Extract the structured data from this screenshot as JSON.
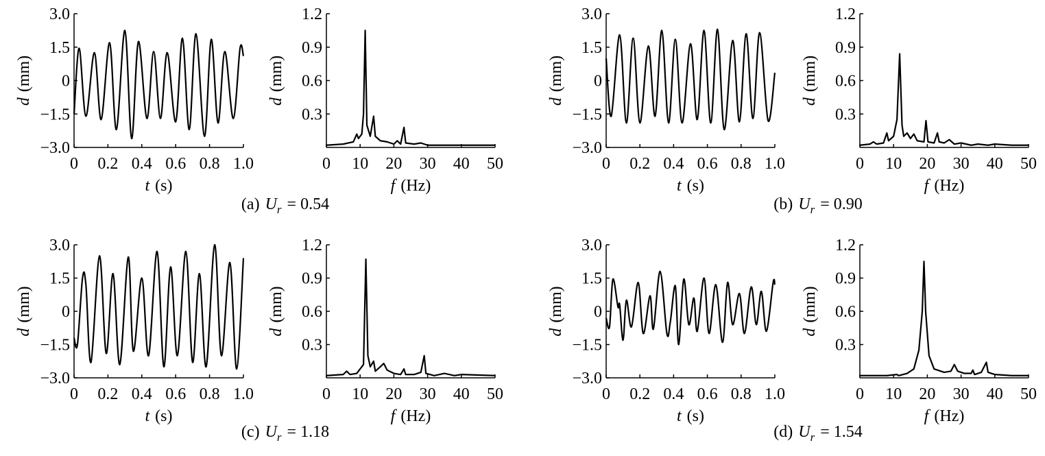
{
  "chart_data": [
    {
      "type": "line",
      "smooth": true,
      "panel": 0,
      "x": [
        0,
        0.03,
        0.07,
        0.12,
        0.16,
        0.21,
        0.25,
        0.3,
        0.34,
        0.38,
        0.43,
        0.47,
        0.51,
        0.55,
        0.6,
        0.64,
        0.68,
        0.72,
        0.77,
        0.81,
        0.85,
        0.89,
        0.94,
        0.98,
        1.0
      ],
      "series": [
        {
          "color": "#000000",
          "values": [
            -1.5,
            1.45,
            -1.6,
            1.25,
            -1.75,
            1.7,
            -2.2,
            2.25,
            -2.6,
            1.75,
            -1.7,
            1.3,
            -1.7,
            1.25,
            -1.85,
            1.9,
            -2.2,
            2.1,
            -2.5,
            1.85,
            -1.9,
            1.3,
            -1.7,
            1.45,
            1.1
          ]
        }
      ],
      "xlim": [
        0,
        1
      ],
      "ylim": [
        -3,
        3
      ],
      "xticks": [
        0,
        0.2,
        0.4,
        0.6,
        0.8,
        {
          "value": 1,
          "label": "1.0"
        }
      ],
      "yticks": [
        {
          "value": -3,
          "label": "−3.0"
        },
        {
          "value": -1.5,
          "label": "−1.5"
        },
        0,
        1.5,
        {
          "value": 3,
          "label": "3.0"
        }
      ],
      "xlabel": {
        "symbol": "t",
        "unit": "(s)"
      },
      "ylabel": {
        "symbol": "d",
        "unit": "(mm)"
      }
    },
    {
      "type": "line",
      "smooth": false,
      "panel": 0,
      "x": [
        0,
        5,
        8,
        9,
        9.5,
        10.5,
        11,
        11.5,
        12,
        13,
        14,
        14.5,
        16,
        18,
        20,
        21,
        22,
        23,
        23.5,
        26,
        28,
        30,
        40,
        50
      ],
      "series": [
        {
          "color": "#000000",
          "values": [
            0.02,
            0.03,
            0.05,
            0.12,
            0.08,
            0.12,
            0.3,
            1.05,
            0.2,
            0.1,
            0.28,
            0.1,
            0.06,
            0.05,
            0.03,
            0.06,
            0.03,
            0.18,
            0.04,
            0.03,
            0.04,
            0.02,
            0.02,
            0.02
          ]
        }
      ],
      "xlim": [
        0,
        50
      ],
      "ylim": [
        0,
        1.2
      ],
      "xticks": [
        0,
        10,
        20,
        30,
        40,
        50
      ],
      "yticks": [
        0.3,
        0.6,
        0.9,
        1.2
      ],
      "xlabel": {
        "symbol": "f",
        "unit": "(Hz)"
      },
      "ylabel": {
        "symbol": "d",
        "unit": "(mm)"
      }
    },
    {
      "type": "line",
      "smooth": true,
      "panel": 1,
      "x": [
        0,
        0.03,
        0.08,
        0.12,
        0.16,
        0.2,
        0.25,
        0.29,
        0.33,
        0.37,
        0.41,
        0.45,
        0.5,
        0.54,
        0.58,
        0.62,
        0.66,
        0.7,
        0.75,
        0.79,
        0.83,
        0.87,
        0.91,
        0.96,
        1.0
      ],
      "series": [
        {
          "color": "#000000",
          "values": [
            1.0,
            -1.6,
            2.05,
            -1.9,
            1.9,
            -1.9,
            1.55,
            -1.6,
            2.25,
            -1.9,
            1.85,
            -1.9,
            1.65,
            -1.75,
            2.25,
            -1.9,
            2.3,
            -2.2,
            1.8,
            -1.85,
            2.1,
            -1.7,
            2.15,
            -1.8,
            0.35
          ]
        }
      ],
      "xlim": [
        0,
        1
      ],
      "ylim": [
        -3,
        3
      ],
      "xticks": [
        0,
        0.2,
        0.4,
        0.6,
        0.8,
        {
          "value": 1,
          "label": "1.0"
        }
      ],
      "yticks": [
        {
          "value": -3,
          "label": "−3.0"
        },
        {
          "value": -1.5,
          "label": "−1.5"
        },
        0,
        1.5,
        {
          "value": 3,
          "label": "3.0"
        }
      ],
      "xlabel": {
        "symbol": "t",
        "unit": "(s)"
      },
      "ylabel": {
        "symbol": "d",
        "unit": "(mm)"
      }
    },
    {
      "type": "line",
      "smooth": false,
      "panel": 1,
      "x": [
        0,
        3,
        4,
        5,
        7,
        8,
        8.5,
        10,
        11,
        11.8,
        12.5,
        13,
        14,
        15,
        16,
        17,
        19,
        19.6,
        20.2,
        22,
        23,
        23.5,
        25,
        26.5,
        28,
        30,
        33,
        35,
        38,
        40,
        45,
        50
      ],
      "series": [
        {
          "color": "#000000",
          "values": [
            0.02,
            0.03,
            0.05,
            0.03,
            0.04,
            0.13,
            0.06,
            0.1,
            0.25,
            0.84,
            0.2,
            0.1,
            0.13,
            0.08,
            0.12,
            0.06,
            0.05,
            0.24,
            0.05,
            0.04,
            0.13,
            0.05,
            0.04,
            0.07,
            0.03,
            0.04,
            0.02,
            0.03,
            0.02,
            0.03,
            0.02,
            0.02
          ]
        }
      ],
      "xlim": [
        0,
        50
      ],
      "ylim": [
        0,
        1.2
      ],
      "xticks": [
        0,
        10,
        20,
        30,
        40,
        50
      ],
      "yticks": [
        0.3,
        0.6,
        0.9,
        1.2
      ],
      "xlabel": {
        "symbol": "f",
        "unit": "(Hz)"
      },
      "ylabel": {
        "symbol": "d",
        "unit": "(mm)"
      }
    },
    {
      "type": "line",
      "smooth": true,
      "panel": 2,
      "x": [
        0,
        0.02,
        0.05,
        0.07,
        0.1,
        0.15,
        0.19,
        0.23,
        0.27,
        0.32,
        0.35,
        0.4,
        0.44,
        0.49,
        0.53,
        0.57,
        0.61,
        0.66,
        0.7,
        0.74,
        0.78,
        0.83,
        0.87,
        0.92,
        0.96,
        1.0
      ],
      "series": [
        {
          "color": "#000000",
          "values": [
            -1.2,
            -1.5,
            1.5,
            1.2,
            -2.3,
            2.5,
            -1.9,
            1.7,
            -2.4,
            2.45,
            -1.8,
            1.5,
            -2.0,
            2.7,
            -2.5,
            2.0,
            -2.0,
            2.7,
            -2.3,
            1.7,
            -2.5,
            3.0,
            -2.0,
            2.2,
            -2.6,
            2.4
          ]
        }
      ],
      "xlim": [
        0,
        1
      ],
      "ylim": [
        -3,
        3
      ],
      "xticks": [
        0,
        0.2,
        0.4,
        0.6,
        0.8,
        {
          "value": 1,
          "label": "1.0"
        }
      ],
      "yticks": [
        {
          "value": -3,
          "label": "−3.0"
        },
        {
          "value": -1.5,
          "label": "−1.5"
        },
        0,
        1.5,
        {
          "value": 3,
          "label": "3.0"
        }
      ],
      "xlabel": {
        "symbol": "t",
        "unit": "(s)"
      },
      "ylabel": {
        "symbol": "d",
        "unit": "(mm)"
      }
    },
    {
      "type": "line",
      "smooth": false,
      "panel": 2,
      "x": [
        0,
        5,
        6,
        7,
        9,
        11,
        11.7,
        12.3,
        13,
        14,
        14.5,
        16,
        17,
        18,
        20,
        22,
        23,
        23.5,
        26,
        28,
        29,
        29.5,
        32,
        35,
        38,
        40,
        50
      ],
      "series": [
        {
          "color": "#000000",
          "values": [
            0.02,
            0.03,
            0.06,
            0.03,
            0.04,
            0.12,
            1.07,
            0.2,
            0.1,
            0.15,
            0.06,
            0.1,
            0.13,
            0.07,
            0.04,
            0.03,
            0.08,
            0.03,
            0.03,
            0.05,
            0.2,
            0.04,
            0.02,
            0.04,
            0.02,
            0.03,
            0.02
          ]
        }
      ],
      "xlim": [
        0,
        50
      ],
      "ylim": [
        0,
        1.2
      ],
      "xticks": [
        0,
        10,
        20,
        30,
        40,
        50
      ],
      "yticks": [
        0.3,
        0.6,
        0.9,
        1.2
      ],
      "xlabel": {
        "symbol": "f",
        "unit": "(Hz)"
      },
      "ylabel": {
        "symbol": "d",
        "unit": "(mm)"
      }
    },
    {
      "type": "line",
      "smooth": true,
      "panel": 3,
      "x": [
        0,
        0.02,
        0.04,
        0.07,
        0.08,
        0.1,
        0.12,
        0.15,
        0.19,
        0.22,
        0.26,
        0.28,
        0.32,
        0.36,
        0.38,
        0.41,
        0.43,
        0.46,
        0.49,
        0.52,
        0.54,
        0.58,
        0.61,
        0.65,
        0.69,
        0.72,
        0.75,
        0.79,
        0.82,
        0.86,
        0.89,
        0.92,
        0.95,
        0.99,
        1.0
      ],
      "series": [
        {
          "color": "#000000",
          "values": [
            -0.3,
            -0.7,
            1.45,
            0.2,
            0.3,
            -1.3,
            0.5,
            -0.7,
            1.3,
            -1.0,
            0.7,
            -0.8,
            1.8,
            -1.0,
            -0.5,
            1.15,
            -1.5,
            1.45,
            -0.6,
            0.6,
            -0.9,
            1.5,
            -1.0,
            1.2,
            -1.4,
            1.3,
            -0.6,
            0.8,
            -1.0,
            1.1,
            -0.6,
            0.9,
            -0.9,
            1.3,
            1.2
          ]
        }
      ],
      "xlim": [
        0,
        1
      ],
      "ylim": [
        -3,
        3
      ],
      "xticks": [
        0,
        0.2,
        0.4,
        0.6,
        0.8,
        {
          "value": 1,
          "label": "1.0"
        }
      ],
      "yticks": [
        {
          "value": -3,
          "label": "−3.0"
        },
        {
          "value": -1.5,
          "label": "−1.5"
        },
        0,
        1.5,
        {
          "value": 3,
          "label": "3.0"
        }
      ],
      "xlabel": {
        "symbol": "t",
        "unit": "(s)"
      },
      "ylabel": {
        "symbol": "d",
        "unit": "(mm)"
      }
    },
    {
      "type": "line",
      "smooth": false,
      "panel": 3,
      "x": [
        0,
        8,
        11,
        11.5,
        14,
        16,
        17.5,
        18.5,
        19,
        19.5,
        20.5,
        22,
        25,
        27,
        28,
        29,
        31,
        33,
        33.5,
        34,
        36,
        37.5,
        38,
        40,
        45,
        50
      ],
      "series": [
        {
          "color": "#000000",
          "values": [
            0.02,
            0.02,
            0.03,
            0.02,
            0.04,
            0.08,
            0.25,
            0.6,
            1.05,
            0.6,
            0.2,
            0.08,
            0.05,
            0.06,
            0.12,
            0.06,
            0.04,
            0.04,
            0.07,
            0.03,
            0.05,
            0.14,
            0.05,
            0.03,
            0.02,
            0.02
          ]
        }
      ],
      "xlim": [
        0,
        50
      ],
      "ylim": [
        0,
        1.2
      ],
      "xticks": [
        0,
        10,
        20,
        30,
        40,
        50
      ],
      "yticks": [
        0.3,
        0.6,
        0.9,
        1.2
      ],
      "xlabel": {
        "symbol": "f",
        "unit": "(Hz)"
      },
      "ylabel": {
        "symbol": "d",
        "unit": "(mm)"
      }
    }
  ],
  "captions": [
    {
      "label": "(a)",
      "symbol": "U",
      "subscript": "r",
      "value": "= 0.54"
    },
    {
      "label": "(b)",
      "symbol": "U",
      "subscript": "r",
      "value": "= 0.90"
    },
    {
      "label": "(c)",
      "symbol": "U",
      "subscript": "r",
      "value": "= 1.18"
    },
    {
      "label": "(d)",
      "symbol": "U",
      "subscript": "r",
      "value": "= 1.54"
    }
  ]
}
